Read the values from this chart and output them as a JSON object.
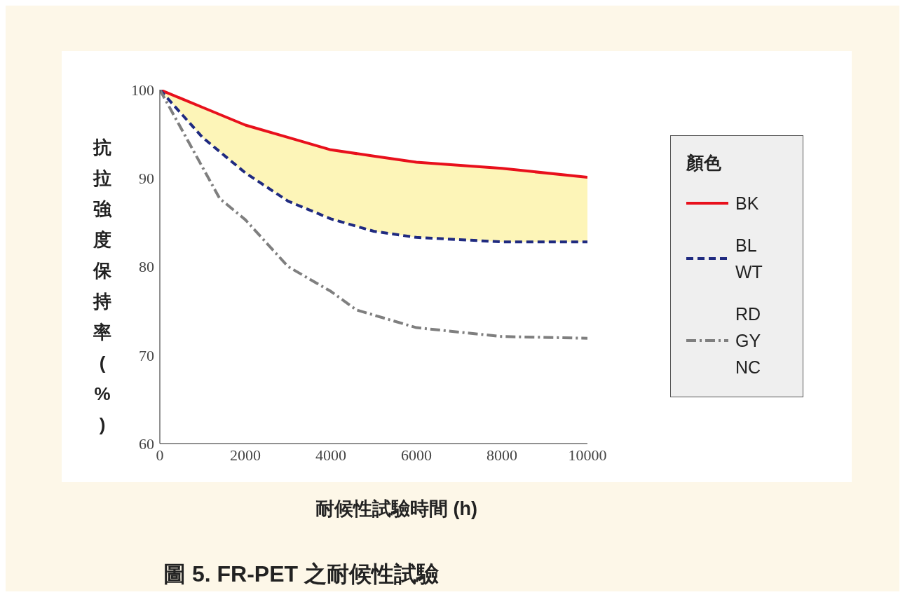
{
  "chart_data": {
    "type": "line",
    "title": "圖 5. FR-PET 之耐候性試驗",
    "xlabel": "耐候性試驗時間 (h)",
    "ylabel": "抗拉強度保持率(%)",
    "legend_title": "顏色",
    "legend": "right",
    "grid": false,
    "marker": "none",
    "xlim": [
      0,
      10000
    ],
    "xticks": [
      0,
      2000,
      4000,
      6000,
      8000,
      10000
    ],
    "ylim": [
      60,
      100
    ],
    "yticks": [
      60,
      70,
      80,
      90,
      100
    ],
    "x": [
      0,
      1000,
      2000,
      3000,
      4000,
      5000,
      6000,
      8000,
      10000
    ],
    "series": [
      {
        "name": "BK",
        "color": "#e8101c",
        "line_style": "solid",
        "values": [
          100,
          98,
          96,
          94.6,
          93.2,
          92.5,
          91.8,
          91.1,
          90.1
        ],
        "lower": [
          100,
          94.6,
          90.6,
          87.4,
          85.4,
          84,
          83.3,
          82.8,
          82.8
        ],
        "upper": [
          100,
          98,
          96,
          94.6,
          93.2,
          92.5,
          91.8,
          91.1,
          90.1
        ]
      },
      {
        "name": "BL\nWT",
        "color": "#1f2a80",
        "line_style": "dashed",
        "values": [
          100,
          94.6,
          90.6,
          87.4,
          85.4,
          84,
          83.3,
          82.8,
          82.8
        ]
      },
      {
        "name": "RD\nGY\nNC",
        "color": "#7f7f7f",
        "line_style": "dashdot",
        "x": [
          0,
          1400,
          2000,
          3000,
          4000,
          4600,
          6000,
          8000,
          10000
        ],
        "values": [
          100,
          87.7,
          85.3,
          80,
          77.2,
          75.1,
          73.1,
          72.1,
          71.9
        ]
      }
    ]
  }
}
